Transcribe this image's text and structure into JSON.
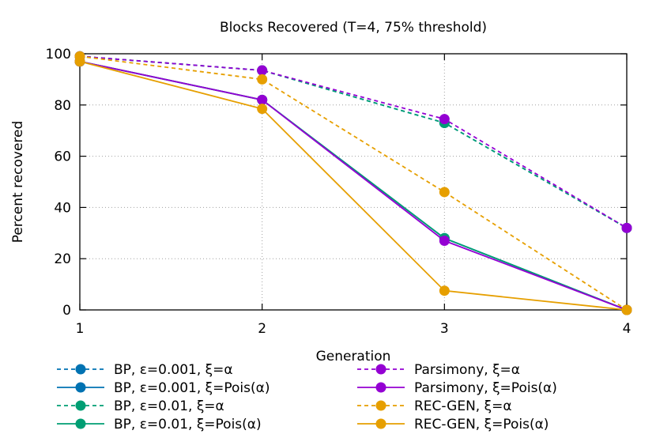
{
  "chart_data": {
    "type": "line",
    "title": "Blocks Recovered (T=4, 75% threshold)",
    "xlabel": "Generation",
    "ylabel": "Percent recovered",
    "x": [
      1,
      2,
      3,
      4
    ],
    "xlim": [
      1,
      4
    ],
    "ylim": [
      0,
      100
    ],
    "xticks": [
      "1",
      "2",
      "3",
      "4"
    ],
    "yticks": [
      "0",
      "20",
      "40",
      "60",
      "80",
      "100"
    ],
    "grid": "x",
    "legend_position": "bottom",
    "series": [
      {
        "name": "BP, ε=0.001, ξ=α",
        "color": "#0072b2",
        "style": "dashed",
        "values": [
          99,
          93.5,
          73,
          32
        ]
      },
      {
        "name": "BP, ε=0.001, ξ=Pois(α)",
        "color": "#0072b2",
        "style": "solid",
        "values": [
          97,
          82,
          28,
          0
        ]
      },
      {
        "name": "BP, ε=0.01, ξ=α",
        "color": "#009e73",
        "style": "dashed",
        "values": [
          99,
          93.5,
          73,
          32
        ]
      },
      {
        "name": "BP, ε=0.01, ξ=Pois(α)",
        "color": "#009e73",
        "style": "solid",
        "values": [
          97,
          82,
          28,
          0
        ]
      },
      {
        "name": "Parsimony, ξ=α",
        "color": "#9400d3",
        "style": "dashed",
        "values": [
          99,
          93.5,
          74.5,
          32
        ]
      },
      {
        "name": "Parsimony, ξ=Pois(α)",
        "color": "#9400d3",
        "style": "solid",
        "values": [
          97,
          82,
          27,
          0
        ]
      },
      {
        "name": "REC-GEN, ξ=α",
        "color": "#e69f00",
        "style": "dashed",
        "values": [
          99,
          90,
          46,
          0
        ]
      },
      {
        "name": "REC-GEN, ξ=Pois(α)",
        "color": "#e69f00",
        "style": "solid",
        "values": [
          97,
          78.5,
          7.5,
          0
        ]
      }
    ]
  }
}
